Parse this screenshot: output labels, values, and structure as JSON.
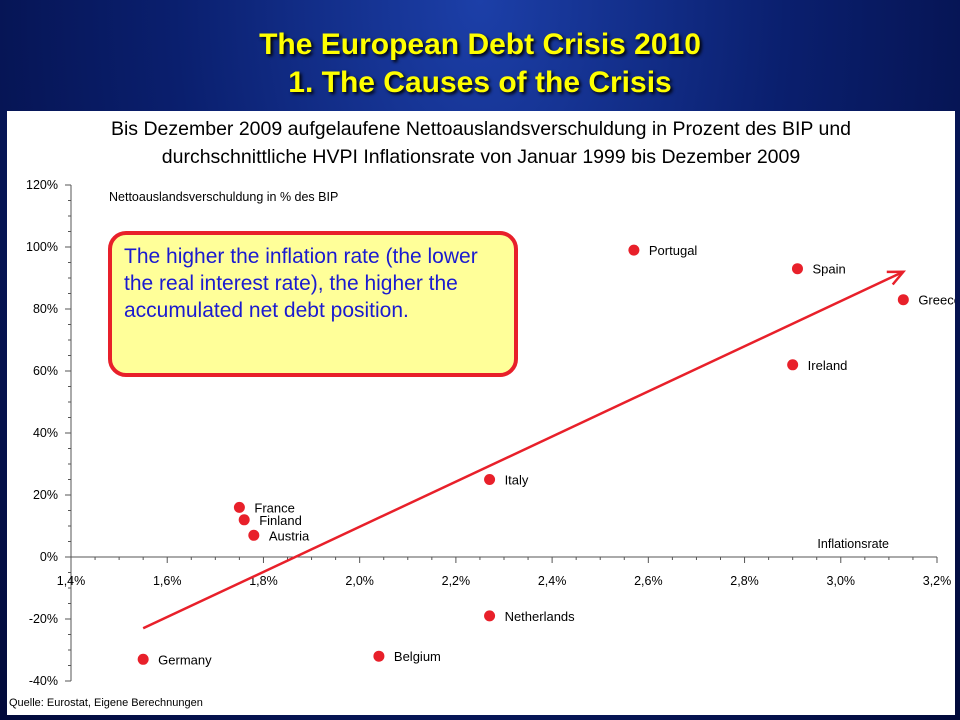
{
  "header": {
    "title_line1": "The European Debt Crisis 2010",
    "title_line2": "1. The Causes of the Crisis"
  },
  "colors": {
    "title": "#ffff00",
    "marker": "#e8202a",
    "trend": "#e8202a",
    "callout_text": "#1a1ad0",
    "callout_fill": "#ffff99"
  },
  "callout": {
    "text": "The higher the inflation rate (the lower the real interest rate), the higher the accumulated net debt position."
  },
  "source": "Quelle: Eurostat, Eigene Berechnungen",
  "chart_data": {
    "type": "scatter",
    "title": "Bis Dezember 2009 aufgelaufene Nettoauslandsverschuldung in Prozent des BIP und",
    "subtitle": "durchschnittliche HVPI Inflationsrate von Januar 1999 bis Dezember 2009",
    "xlabel": "Inflationsrate",
    "ylabel": "Nettoauslandsverschuldung in % des BIP",
    "xlim": [
      1.4,
      3.2
    ],
    "ylim": [
      -40,
      120
    ],
    "x_ticks": [
      1.4,
      1.6,
      1.8,
      2.0,
      2.2,
      2.4,
      2.6,
      2.8,
      3.0,
      3.2
    ],
    "x_tick_labels": [
      "1,4%",
      "1,6%",
      "1,8%",
      "2,0%",
      "2,2%",
      "2,4%",
      "2,6%",
      "2,8%",
      "3,0%",
      "3,2%"
    ],
    "y_ticks": [
      120,
      100,
      80,
      60,
      40,
      20,
      0,
      -20,
      -40
    ],
    "y_tick_labels": [
      "120%",
      "100%",
      "80%",
      "60%",
      "40%",
      "20%",
      "0%",
      "-20%",
      "-40%"
    ],
    "grid": false,
    "points": [
      {
        "label": "Portugal",
        "x": 2.57,
        "y": 99
      },
      {
        "label": "Spain",
        "x": 2.91,
        "y": 93
      },
      {
        "label": "Greece",
        "x": 3.13,
        "y": 83
      },
      {
        "label": "Ireland",
        "x": 2.9,
        "y": 62
      },
      {
        "label": "Italy",
        "x": 2.27,
        "y": 25
      },
      {
        "label": "France",
        "x": 1.75,
        "y": 16
      },
      {
        "label": "Finland",
        "x": 1.76,
        "y": 12
      },
      {
        "label": "Austria",
        "x": 1.78,
        "y": 7
      },
      {
        "label": "Netherlands",
        "x": 2.27,
        "y": -19
      },
      {
        "label": "Belgium",
        "x": 2.04,
        "y": -32
      },
      {
        "label": "Germany",
        "x": 1.55,
        "y": -33
      }
    ],
    "trend_arrow": {
      "from": [
        1.55,
        -23
      ],
      "to": [
        3.13,
        92
      ]
    }
  }
}
